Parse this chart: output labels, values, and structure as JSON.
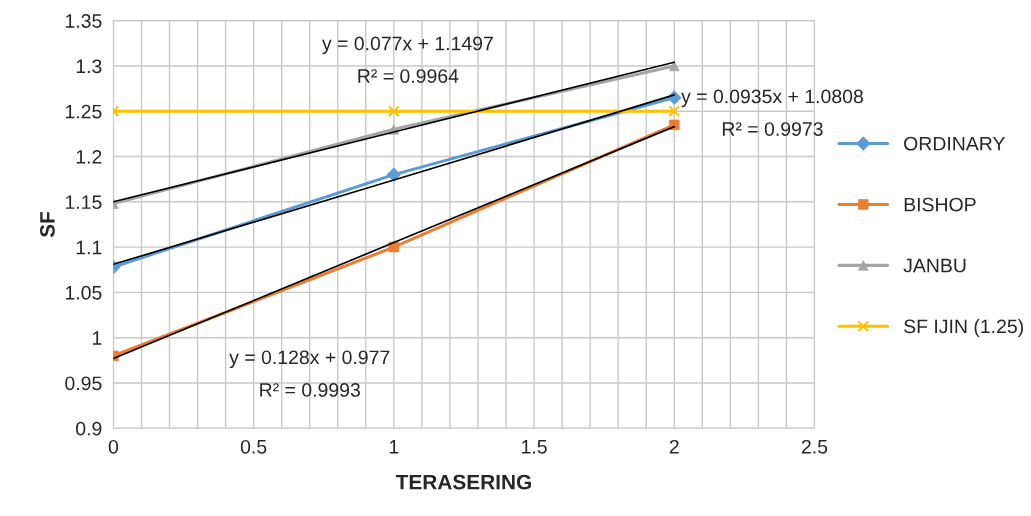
{
  "chart_data": {
    "type": "line",
    "xlabel": "TERASERING",
    "ylabel": "SF",
    "x": [
      0,
      1,
      2
    ],
    "series": [
      {
        "name": "ORDINARY",
        "color": "#5b9bd5",
        "marker": "diamond",
        "values": [
          1.078,
          1.18,
          1.265
        ]
      },
      {
        "name": "BISHOP",
        "color": "#ed7d31",
        "marker": "square",
        "values": [
          0.98,
          1.1,
          1.235
        ]
      },
      {
        "name": "JANBU",
        "color": "#a5a5a5",
        "marker": "triangle",
        "values": [
          1.148,
          1.23,
          1.3
        ]
      },
      {
        "name": "SF IJIN (1.25)",
        "color": "#ffc000",
        "marker": "cross",
        "values": [
          1.25,
          1.25,
          1.25
        ]
      },
      {
        "type": "line",
        "color": "#000000",
        "marker": "none",
        "values": [
          1.081,
          1.174,
          1.268
        ]
      },
      {
        "type": "line",
        "color": "#000000",
        "marker": "none",
        "values": [
          0.977,
          1.105,
          1.233
        ]
      },
      {
        "type": "line",
        "color": "#000000",
        "marker": "none",
        "values": [
          1.15,
          1.227,
          1.304
        ]
      }
    ],
    "annotations": [
      "y = 0.077x + 1.1497",
      "R² = 0.9964",
      "y = 0.0935x + 1.0808",
      "R² = 0.9973",
      "y = 0.128x + 0.977",
      "R² = 0.9993"
    ],
    "xlim": [
      0,
      2.5
    ],
    "xticks": [
      0,
      {
        "value": 0.1,
        "label": null
      },
      {
        "value": 0.2,
        "label": null
      },
      {
        "value": 0.3,
        "label": null
      },
      {
        "value": 0.4,
        "label": null
      },
      0.5,
      {
        "value": 0.6,
        "label": null
      },
      {
        "value": 0.7,
        "label": null
      },
      {
        "value": 0.8,
        "label": null
      },
      {
        "value": 0.9,
        "label": null
      },
      1,
      {
        "value": 1.1,
        "label": null
      },
      {
        "value": 1.2,
        "label": null
      },
      {
        "value": 1.3,
        "label": null
      },
      {
        "value": 1.4,
        "label": null
      },
      1.5,
      {
        "value": 1.6,
        "label": null
      },
      {
        "value": 1.7,
        "label": null
      },
      {
        "value": 1.8,
        "label": null
      },
      {
        "value": 1.9,
        "label": null
      },
      2,
      {
        "value": 2.1,
        "label": null
      },
      {
        "value": 2.2,
        "label": null
      },
      {
        "value": 2.3,
        "label": null
      },
      {
        "value": 2.4,
        "label": null
      },
      2.5
    ],
    "ylim": [
      0.9,
      1.35
    ],
    "yticks": [
      0.9,
      0.95,
      1,
      1.05,
      1.1,
      1.15,
      1.2,
      1.25,
      1.3,
      1.35
    ],
    "grid": true,
    "legend": "right",
    "line_style": "solid"
  }
}
